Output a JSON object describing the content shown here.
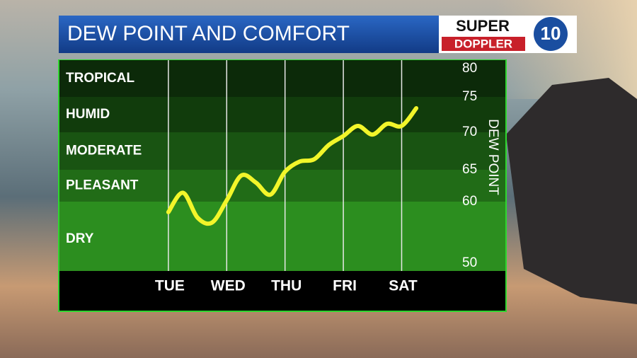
{
  "chart_data": {
    "type": "line",
    "title": "DEW POINT AND COMFORT",
    "logo": {
      "top": "SUPER",
      "bottom": "DOPPLER",
      "number": "10"
    },
    "y_label": "DEW POINT",
    "x": [
      0,
      0.25,
      0.5,
      0.75,
      1,
      1.25,
      1.5,
      1.75,
      2,
      2.25,
      2.5,
      2.75,
      3,
      3.25,
      3.5,
      3.75,
      4,
      4.25
    ],
    "xlim": [
      -1.88,
      4.88
    ],
    "xticks": [
      {
        "value": 0,
        "label": "TUE"
      },
      {
        "value": 1,
        "label": "WED"
      },
      {
        "value": 2,
        "label": "THU"
      },
      {
        "value": 3,
        "label": "FRI"
      },
      {
        "value": 4,
        "label": "SAT"
      }
    ],
    "series": [
      {
        "color": "#f2f52a",
        "values": [
          58.3,
          61.4,
          57.4,
          56.6,
          60.2,
          64.1,
          63,
          61.1,
          64.7,
          66.1,
          66.4,
          68.3,
          69.5,
          70.9,
          69.7,
          71.2,
          70.9,
          73.4
        ]
      }
    ],
    "ylim": [
      50,
      81
    ],
    "yticks": [
      50,
      60,
      65,
      70,
      75,
      80
    ],
    "bands": [
      {
        "label": "TROPICAL",
        "from": 75,
        "color": "#0c2a09"
      },
      {
        "label": "HUMID",
        "from": 70,
        "color": "#113c0c"
      },
      {
        "label": "MODERATE",
        "from": 65,
        "color": "#195412"
      },
      {
        "label": "PLEASANT",
        "from": 60,
        "color": "#216c17"
      },
      {
        "label": "DRY",
        "from": 50,
        "color": "#2c8e1f"
      }
    ],
    "grid": true
  }
}
